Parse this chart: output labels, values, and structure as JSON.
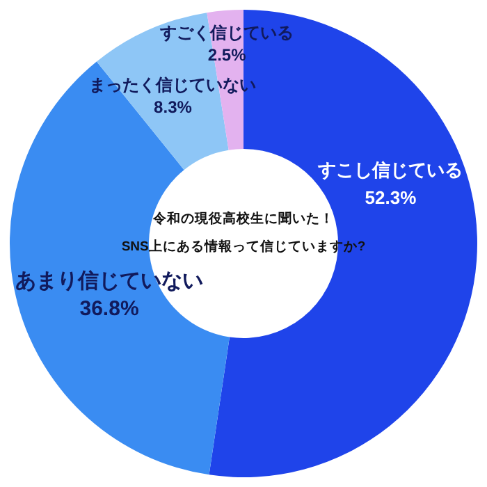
{
  "chart_data": {
    "type": "donut",
    "title": "令和の現役高校生に聞いた！",
    "subtitle": "SNS上にある情報って信じていますか?",
    "categories": [
      "すこし信じている",
      "あまり信じていない",
      "まったく信じていない",
      "すごく信じている"
    ],
    "values": [
      52.3,
      36.8,
      8.3,
      2.5
    ],
    "value_labels": [
      "52.3%",
      "36.8%",
      "8.3%",
      "2.5%"
    ],
    "colors": [
      "#1f44ea",
      "#3a8cf2",
      "#8ec6f6",
      "#e3b2ef"
    ]
  }
}
